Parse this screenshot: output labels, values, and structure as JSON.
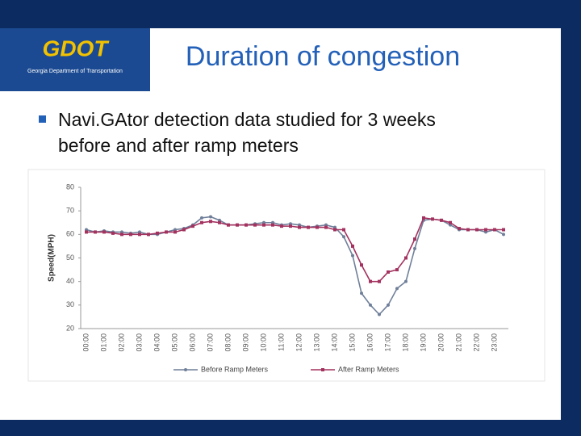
{
  "logo": {
    "name": "GDOT",
    "subtitle": "Georgia Department of Transportation"
  },
  "title": "Duration of congestion",
  "bullets": [
    "Navi.GAtor detection data studied for 3 weeks",
    "before and after ramp meters"
  ],
  "chart_data": {
    "type": "line",
    "y_label": "Speed(MPH)",
    "categories": [
      "00:00",
      null,
      "01:00",
      null,
      "02:00",
      null,
      "03:00",
      null,
      "04:00",
      null,
      "05:00",
      null,
      "06:00",
      null,
      "07:00",
      null,
      "08:00",
      null,
      "09:00",
      null,
      "10:00",
      null,
      "11:00",
      null,
      "12:00",
      null,
      "13:00",
      null,
      "14:00",
      null,
      "15:00",
      null,
      "16:00",
      null,
      "17:00",
      null,
      "18:00",
      null,
      "19:00",
      null,
      "20:00",
      null,
      "21:00",
      null,
      "22:00",
      null,
      "23:00",
      null
    ],
    "series": [
      {
        "name": "Before Ramp Meters",
        "color": "#6f7f99",
        "marker": "circle",
        "values": [
          62,
          61,
          61.5,
          61,
          61,
          60.5,
          61,
          60,
          60,
          61,
          62,
          62.5,
          64,
          67,
          67.5,
          66,
          64,
          64,
          64,
          64.5,
          65,
          65,
          64,
          64.5,
          64,
          63,
          63.5,
          64,
          63,
          59,
          51,
          35,
          30,
          26,
          30,
          37,
          40,
          54,
          66,
          66.5,
          66,
          64,
          62,
          62,
          62,
          61,
          62,
          60
        ]
      },
      {
        "name": "After Ramp Meters",
        "color": "#a3325f",
        "marker": "square",
        "values": [
          61,
          61,
          61,
          60.5,
          60,
          60,
          60,
          60,
          60.5,
          61,
          61,
          62,
          63.5,
          65,
          65.5,
          65,
          64,
          64,
          64,
          64,
          64,
          64,
          63.5,
          63.5,
          63,
          63,
          63,
          63,
          62,
          62,
          55,
          47,
          40,
          40,
          44,
          45,
          50,
          58,
          67,
          66.5,
          66,
          65,
          62.5,
          62,
          62,
          62,
          62,
          62
        ]
      }
    ],
    "ylim": [
      20,
      80
    ],
    "yticks": [
      20,
      30,
      40,
      50,
      60,
      70,
      80
    ],
    "grid": false,
    "legend": "bottom"
  }
}
